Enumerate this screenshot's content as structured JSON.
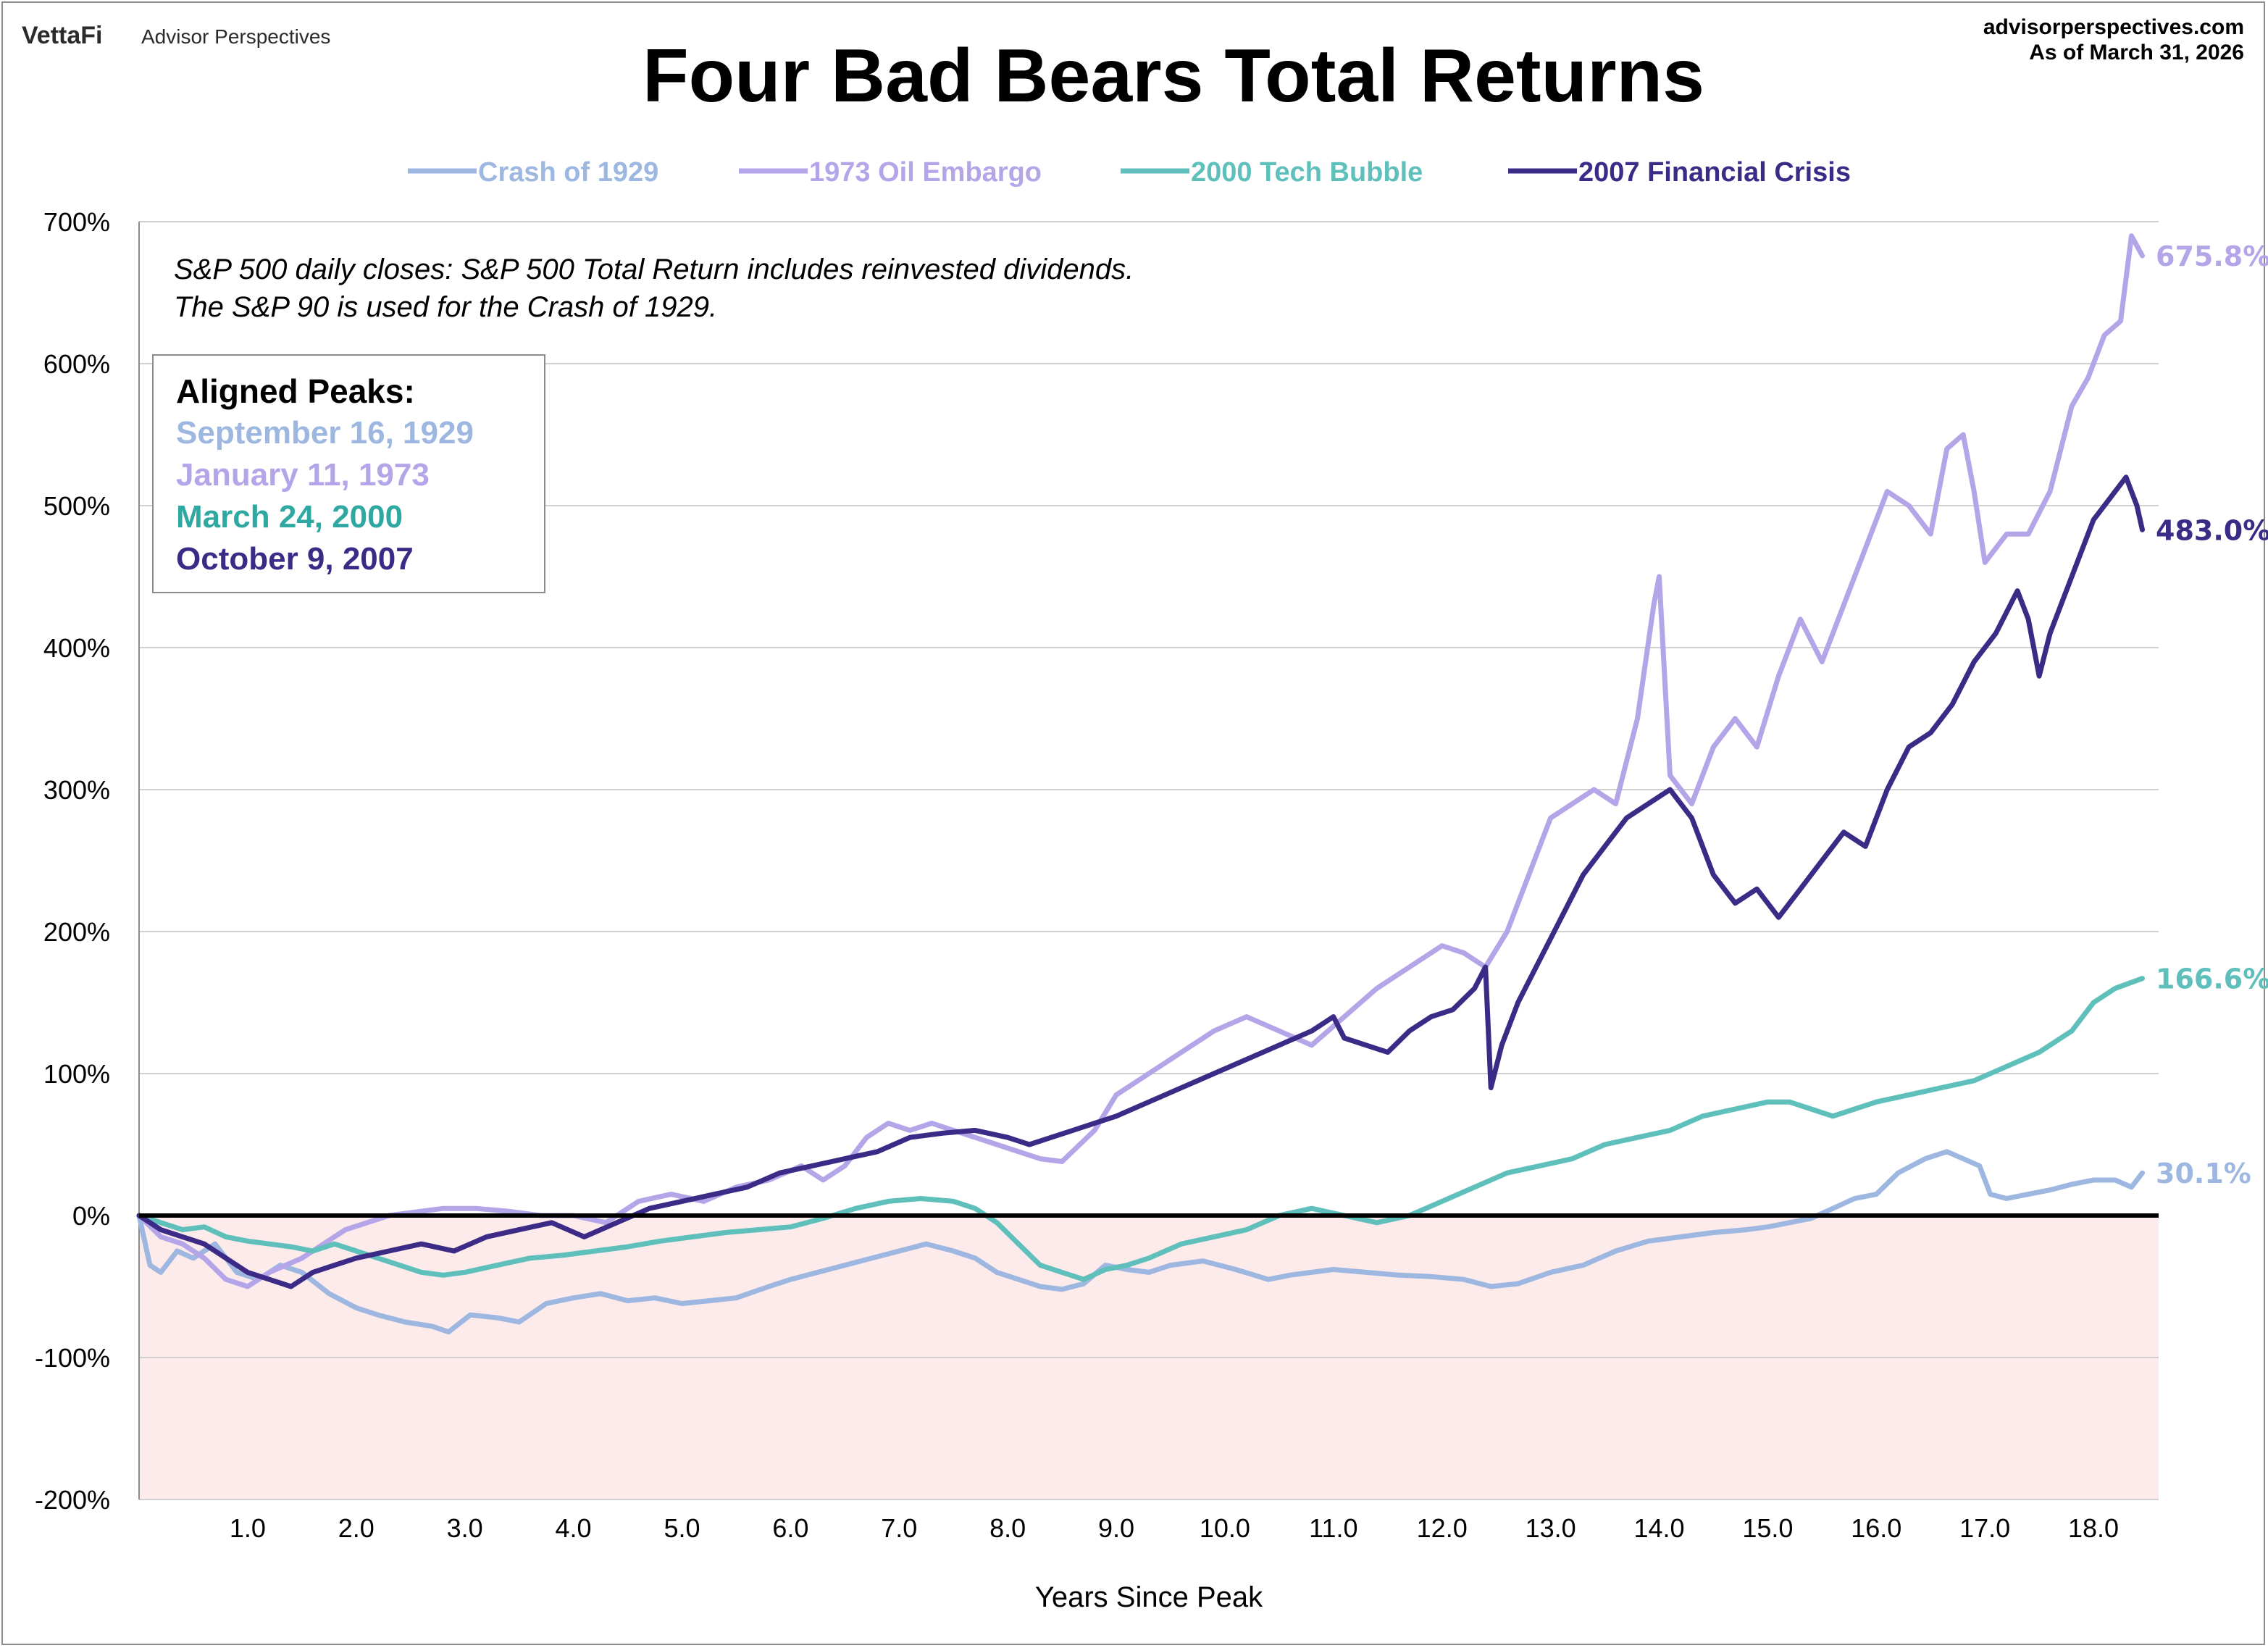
{
  "branding": {
    "logo_vettafi": "VettaFi",
    "logo_advisor": "Advisor Perspectives",
    "site": "advisorperspectives.com",
    "as_of": "As of March 31, 2026"
  },
  "chart_data": {
    "type": "line",
    "title": "Four Bad Bears Total Returns",
    "xlabel": "Years Since Peak",
    "ylabel": "",
    "xlim": [
      0,
      18.6
    ],
    "ylim": [
      -200,
      700
    ],
    "x_ticks": [
      1.0,
      2.0,
      3.0,
      4.0,
      5.0,
      6.0,
      7.0,
      8.0,
      9.0,
      10.0,
      11.0,
      12.0,
      13.0,
      14.0,
      15.0,
      16.0,
      17.0,
      18.0
    ],
    "x_tick_labels": [
      "1.0",
      "2.0",
      "3.0",
      "4.0",
      "5.0",
      "6.0",
      "7.0",
      "8.0",
      "9.0",
      "10.0",
      "11.0",
      "12.0",
      "13.0",
      "14.0",
      "15.0",
      "16.0",
      "17.0",
      "18.0"
    ],
    "y_ticks": [
      -200,
      -100,
      0,
      100,
      200,
      300,
      400,
      500,
      600,
      700
    ],
    "y_tick_labels": [
      "-200%",
      "-100%",
      "0%",
      "100%",
      "200%",
      "300%",
      "400%",
      "500%",
      "600%",
      "700%"
    ],
    "grid": "horizontal",
    "zero_line": true,
    "negative_region_color": "#fdeaea",
    "legend_position": "top",
    "notes": [
      "S&P 500 daily closes: S&P 500 Total Return includes reinvested dividends.",
      "The S&P 90 is used for the Crash of 1929."
    ],
    "aligned_peaks": {
      "heading": "Aligned Peaks:",
      "dates": [
        "September 16, 1929",
        "January 11, 1973",
        "March 24, 2000",
        "October 9, 2007"
      ]
    },
    "series": [
      {
        "name": "Crash of 1929",
        "color": "#9db7e0",
        "end_label": "30.1%",
        "x": [
          0,
          0.1,
          0.2,
          0.35,
          0.5,
          0.7,
          0.9,
          1.1,
          1.3,
          1.5,
          1.75,
          2.0,
          2.2,
          2.45,
          2.7,
          2.85,
          3.05,
          3.3,
          3.5,
          3.75,
          4.0,
          4.25,
          4.5,
          4.75,
          5.0,
          5.25,
          5.5,
          5.8,
          6.0,
          6.25,
          6.5,
          6.75,
          7.0,
          7.25,
          7.5,
          7.7,
          7.9,
          8.1,
          8.3,
          8.5,
          8.7,
          8.9,
          9.1,
          9.3,
          9.5,
          9.8,
          10.1,
          10.4,
          10.6,
          10.8,
          11.0,
          11.3,
          11.6,
          11.9,
          12.2,
          12.45,
          12.7,
          13.0,
          13.3,
          13.6,
          13.9,
          14.2,
          14.5,
          14.8,
          15.0,
          15.2,
          15.4,
          15.6,
          15.8,
          16.0,
          16.2,
          16.45,
          16.65,
          16.8,
          16.95,
          17.05,
          17.2,
          17.4,
          17.6,
          17.8,
          18.0,
          18.2,
          18.35,
          18.45
        ],
        "y": [
          0,
          -35,
          -40,
          -25,
          -30,
          -20,
          -40,
          -45,
          -35,
          -40,
          -55,
          -65,
          -70,
          -75,
          -78,
          -82,
          -70,
          -72,
          -75,
          -62,
          -58,
          -55,
          -60,
          -58,
          -62,
          -60,
          -58,
          -50,
          -45,
          -40,
          -35,
          -30,
          -25,
          -20,
          -25,
          -30,
          -40,
          -45,
          -50,
          -52,
          -48,
          -35,
          -38,
          -40,
          -35,
          -32,
          -38,
          -45,
          -42,
          -40,
          -38,
          -40,
          -42,
          -43,
          -45,
          -50,
          -48,
          -40,
          -35,
          -25,
          -18,
          -15,
          -12,
          -10,
          -8,
          -5,
          -2,
          5,
          12,
          15,
          30,
          40,
          45,
          40,
          35,
          15,
          12,
          15,
          18,
          22,
          25,
          25,
          20,
          30
        ]
      },
      {
        "name": "1973 Oil Embargo",
        "color": "#b3a5e8",
        "end_label": "675.8%",
        "x": [
          0,
          0.2,
          0.4,
          0.6,
          0.8,
          1.0,
          1.2,
          1.5,
          1.7,
          1.9,
          2.1,
          2.3,
          2.5,
          2.8,
          3.1,
          3.4,
          3.7,
          4.0,
          4.3,
          4.6,
          4.9,
          5.2,
          5.5,
          5.8,
          6.1,
          6.3,
          6.5,
          6.7,
          6.9,
          7.1,
          7.3,
          7.5,
          7.7,
          7.9,
          8.1,
          8.3,
          8.5,
          8.8,
          9.0,
          9.3,
          9.6,
          9.9,
          10.2,
          10.5,
          10.8,
          11.1,
          11.4,
          11.7,
          12.0,
          12.2,
          12.4,
          12.6,
          12.8,
          13.0,
          13.2,
          13.4,
          13.6,
          13.8,
          13.95,
          14.0,
          14.1,
          14.3,
          14.5,
          14.7,
          14.9,
          15.1,
          15.3,
          15.5,
          15.7,
          15.9,
          16.1,
          16.3,
          16.5,
          16.65,
          16.8,
          16.9,
          17.0,
          17.2,
          17.4,
          17.6,
          17.8,
          17.95,
          18.1,
          18.25,
          18.35,
          18.45
        ],
        "y": [
          0,
          -15,
          -20,
          -30,
          -45,
          -50,
          -40,
          -30,
          -20,
          -10,
          -5,
          0,
          2,
          5,
          5,
          3,
          0,
          0,
          -5,
          10,
          15,
          10,
          20,
          25,
          35,
          25,
          35,
          55,
          65,
          60,
          65,
          60,
          55,
          50,
          45,
          40,
          38,
          60,
          85,
          100,
          115,
          130,
          140,
          130,
          120,
          140,
          160,
          175,
          190,
          185,
          175,
          200,
          240,
          280,
          290,
          300,
          290,
          350,
          430,
          450,
          310,
          290,
          330,
          350,
          330,
          380,
          420,
          390,
          430,
          470,
          510,
          500,
          480,
          540,
          550,
          510,
          460,
          480,
          480,
          510,
          570,
          590,
          620,
          630,
          690,
          676
        ]
      },
      {
        "name": "2000 Tech Bubble",
        "color": "#5ebfbb",
        "end_label": "166.6%",
        "x": [
          0,
          0.2,
          0.4,
          0.6,
          0.8,
          1.0,
          1.2,
          1.4,
          1.6,
          1.8,
          2.0,
          2.2,
          2.4,
          2.6,
          2.8,
          3.0,
          3.3,
          3.6,
          3.9,
          4.2,
          4.5,
          4.8,
          5.1,
          5.4,
          5.7,
          6.0,
          6.3,
          6.6,
          6.9,
          7.2,
          7.5,
          7.7,
          7.9,
          8.1,
          8.3,
          8.5,
          8.7,
          8.9,
          9.1,
          9.3,
          9.6,
          9.9,
          10.2,
          10.5,
          10.8,
          11.1,
          11.4,
          11.7,
          12.0,
          12.3,
          12.6,
          12.9,
          13.2,
          13.5,
          13.8,
          14.1,
          14.4,
          14.7,
          15.0,
          15.2,
          15.4,
          15.6,
          15.8,
          16.0,
          16.3,
          16.6,
          16.9,
          17.2,
          17.5,
          17.8,
          18.0,
          18.2,
          18.45
        ],
        "y": [
          0,
          -5,
          -10,
          -8,
          -15,
          -18,
          -20,
          -22,
          -25,
          -20,
          -25,
          -30,
          -35,
          -40,
          -42,
          -40,
          -35,
          -30,
          -28,
          -25,
          -22,
          -18,
          -15,
          -12,
          -10,
          -8,
          -2,
          5,
          10,
          12,
          10,
          5,
          -5,
          -20,
          -35,
          -40,
          -45,
          -38,
          -35,
          -30,
          -20,
          -15,
          -10,
          0,
          5,
          0,
          -5,
          0,
          10,
          20,
          30,
          35,
          40,
          50,
          55,
          60,
          70,
          75,
          80,
          80,
          75,
          70,
          75,
          80,
          85,
          90,
          95,
          105,
          115,
          130,
          150,
          160,
          167
        ]
      },
      {
        "name": "2007 Financial Crisis",
        "color": "#3b2b87",
        "end_label": "483.0%",
        "x": [
          0,
          0.2,
          0.4,
          0.6,
          0.8,
          1.0,
          1.2,
          1.4,
          1.6,
          1.8,
          2.0,
          2.3,
          2.6,
          2.9,
          3.2,
          3.5,
          3.8,
          4.1,
          4.4,
          4.7,
          5.0,
          5.3,
          5.6,
          5.9,
          6.2,
          6.5,
          6.8,
          7.1,
          7.4,
          7.7,
          8.0,
          8.2,
          8.4,
          8.6,
          8.8,
          9.0,
          9.3,
          9.6,
          9.9,
          10.2,
          10.5,
          10.8,
          11.0,
          11.1,
          11.3,
          11.5,
          11.7,
          11.9,
          12.1,
          12.3,
          12.4,
          12.45,
          12.55,
          12.7,
          12.9,
          13.1,
          13.3,
          13.5,
          13.7,
          13.9,
          14.1,
          14.3,
          14.5,
          14.7,
          14.9,
          15.1,
          15.3,
          15.5,
          15.7,
          15.9,
          16.1,
          16.3,
          16.5,
          16.7,
          16.9,
          17.1,
          17.3,
          17.4,
          17.5,
          17.6,
          17.8,
          18.0,
          18.1,
          18.2,
          18.3,
          18.4,
          18.45
        ],
        "y": [
          0,
          -10,
          -15,
          -20,
          -30,
          -40,
          -45,
          -50,
          -40,
          -35,
          -30,
          -25,
          -20,
          -25,
          -15,
          -10,
          -5,
          -15,
          -5,
          5,
          10,
          15,
          20,
          30,
          35,
          40,
          45,
          55,
          58,
          60,
          55,
          50,
          55,
          60,
          65,
          70,
          80,
          90,
          100,
          110,
          120,
          130,
          140,
          125,
          120,
          115,
          130,
          140,
          145,
          160,
          175,
          90,
          120,
          150,
          180,
          210,
          240,
          260,
          280,
          290,
          300,
          280,
          240,
          220,
          230,
          210,
          230,
          250,
          270,
          260,
          300,
          330,
          340,
          360,
          390,
          410,
          440,
          420,
          380,
          410,
          450,
          490,
          500,
          510,
          520,
          500,
          483
        ]
      }
    ]
  }
}
